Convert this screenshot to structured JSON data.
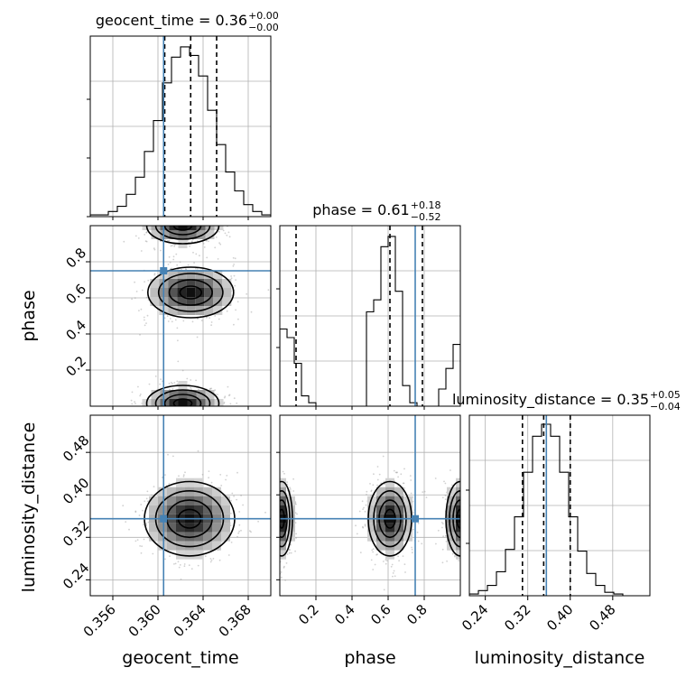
{
  "chart_data": {
    "type": "corner",
    "parameters": [
      "geocent_time",
      "phase",
      "luminosity_distance"
    ],
    "axis_labels": [
      "geocent_time",
      "phase",
      "luminosity_distance"
    ],
    "truths": [
      0.3605,
      0.75,
      0.355
    ],
    "truth_color": "#4682b4",
    "grid": true,
    "ranges": [
      [
        0.354,
        0.37
      ],
      [
        0.0,
        1.0
      ],
      [
        0.21,
        0.55
      ]
    ],
    "xticks": [
      [
        "0.356",
        "0.360",
        "0.364",
        "0.368"
      ],
      [
        "0.2",
        "0.4",
        "0.6",
        "0.8"
      ],
      [
        "0.24",
        "0.32",
        "0.40",
        "0.48"
      ]
    ],
    "yticks": {
      "phase": [
        "0.2",
        "0.4",
        "0.6",
        "0.8"
      ],
      "luminosity_distance": [
        "0.24",
        "0.32",
        "0.40",
        "0.48"
      ]
    },
    "titles": [
      {
        "base": "geocent_time = 0.36",
        "plus": "+0.00",
        "minus": "−0.00"
      },
      {
        "base": "phase = 0.61",
        "plus": "+0.18",
        "minus": "−0.52"
      },
      {
        "base": "luminosity_distance = 0.35",
        "plus": "+0.05",
        "minus": "−0.04"
      }
    ],
    "quantiles": {
      "geocent_time": [
        0.3606,
        0.3629,
        0.3652
      ],
      "phase": [
        0.09,
        0.61,
        0.79
      ],
      "luminosity_distance": [
        0.31,
        0.35,
        0.4
      ]
    },
    "histograms": {
      "geocent_time": [
        0.01,
        0.01,
        0.03,
        0.06,
        0.13,
        0.23,
        0.38,
        0.56,
        0.78,
        0.93,
        0.99,
        0.94,
        0.82,
        0.62,
        0.42,
        0.26,
        0.15,
        0.07,
        0.03,
        0.01
      ],
      "phase": [
        0.45,
        0.4,
        0.25,
        0.06,
        0.02,
        0.0,
        0.0,
        0.0,
        0.0,
        0.0,
        0.0,
        0.0,
        0.55,
        0.62,
        0.93,
        0.99,
        0.67,
        0.12,
        0.02,
        0.0,
        0.0,
        0.0,
        0.1,
        0.22,
        0.36
      ],
      "luminosity_distance": [
        0.01,
        0.03,
        0.06,
        0.14,
        0.27,
        0.46,
        0.72,
        0.93,
        1.0,
        0.93,
        0.72,
        0.46,
        0.26,
        0.13,
        0.06,
        0.02,
        0.01,
        0.0,
        0.0,
        0.0
      ]
    },
    "density_blobs": [
      {
        "panel": "phase_vs_geocent_time",
        "cx": 0.3629,
        "cy": 0.63,
        "sx": 0.0019,
        "sy": 0.07
      },
      {
        "panel": "phase_vs_geocent_time",
        "cx": 0.3622,
        "cy": 0.015,
        "sx": 0.0016,
        "sy": 0.05
      },
      {
        "panel": "phase_vs_geocent_time",
        "cx": 0.3622,
        "cy": 1.0,
        "sx": 0.0016,
        "sy": 0.05
      },
      {
        "panel": "luminosity_distance_vs_geocent_time",
        "cx": 0.3628,
        "cy": 0.355,
        "sx": 0.002,
        "sy": 0.035
      },
      {
        "panel": "luminosity_distance_vs_phase",
        "cx": 0.61,
        "cy": 0.355,
        "sx": 0.06,
        "sy": 0.035
      },
      {
        "panel": "luminosity_distance_vs_phase",
        "cx": 0.01,
        "cy": 0.355,
        "sx": 0.03,
        "sy": 0.035
      },
      {
        "panel": "luminosity_distance_vs_phase",
        "cx": 1.0,
        "cy": 0.355,
        "sx": 0.04,
        "sy": 0.035
      }
    ]
  }
}
